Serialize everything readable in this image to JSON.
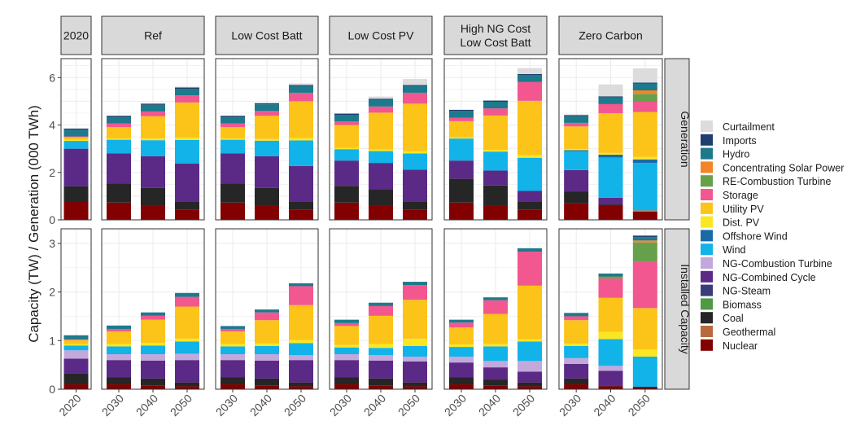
{
  "chart_data": {
    "type": "bar",
    "stacked": true,
    "ylabel": "Capacity (TW) / Generation (000 TWh)",
    "panel_columns": [
      {
        "title": "2020",
        "years": [
          "2020"
        ]
      },
      {
        "title": "Ref",
        "years": [
          "2030",
          "2040",
          "2050"
        ]
      },
      {
        "title": "Low Cost Batt",
        "years": [
          "2030",
          "2040",
          "2050"
        ]
      },
      {
        "title": "Low Cost PV",
        "years": [
          "2030",
          "2040",
          "2050"
        ]
      },
      {
        "title": "High NG Cost\nLow Cost Batt",
        "years": [
          "2030",
          "2040",
          "2050"
        ]
      },
      {
        "title": "Zero Carbon",
        "years": [
          "2030",
          "2040",
          "2050"
        ]
      }
    ],
    "panel_rows": [
      {
        "title": "Generation",
        "ylim": [
          0,
          6.8
        ],
        "ticks": [
          0,
          2,
          4,
          6
        ]
      },
      {
        "title": "Installed Capacity",
        "ylim": [
          0,
          3.3
        ],
        "ticks": [
          0,
          1,
          2,
          3
        ]
      }
    ],
    "series_order": [
      "Nuclear",
      "Geothermal",
      "Coal",
      "Biomass",
      "NG-Steam",
      "NG-Combined Cycle",
      "NG-Combustion Turbine",
      "Wind",
      "Offshore Wind",
      "Dist. PV",
      "Utility PV",
      "Storage",
      "RE-Combustion Turbine",
      "Concentrating Solar Power",
      "Hydro",
      "Imports",
      "Curtailment"
    ],
    "legend": [
      "Curtailment",
      "Imports",
      "Hydro",
      "Concentrating Solar Power",
      "RE-Combustion Turbine",
      "Storage",
      "Utility PV",
      "Dist. PV",
      "Offshore Wind",
      "Wind",
      "NG-Combustion Turbine",
      "NG-Combined Cycle",
      "NG-Steam",
      "Biomass",
      "Coal",
      "Geothermal",
      "Nuclear"
    ],
    "colors": {
      "Curtailment": "#dcdcdc",
      "Imports": "#1f3f6e",
      "Hydro": "#1d7a8c",
      "Concentrating Solar Power": "#f2852a",
      "RE-Combustion Turbine": "#67a04a",
      "Storage": "#f2578f",
      "Utility PV": "#fcc419",
      "Dist. PV": "#fbe622",
      "Offshore Wind": "#1a6aa8",
      "Wind": "#12b3e8",
      "NG-Combustion Turbine": "#c3a8dc",
      "NG-Combined Cycle": "#5b2a86",
      "NG-Steam": "#3b3b7a",
      "Biomass": "#4f9a45",
      "Coal": "#262626",
      "Geothermal": "#b86a3e",
      "Nuclear": "#820000"
    },
    "data": {
      "Generation": [
        [
          {
            "Nuclear": 0.79,
            "Coal": 0.62,
            "NG-Combined Cycle": 1.59,
            "Wind": 0.33,
            "Dist. PV": 0.05,
            "Utility PV": 0.11,
            "Storage": 0.03,
            "Hydro": 0.28,
            "Imports": 0.05
          }
        ],
        [
          {
            "Nuclear": 0.73,
            "Coal": 0.8,
            "NG-Combined Cycle": 1.27,
            "Wind": 0.58,
            "Dist. PV": 0.05,
            "Utility PV": 0.48,
            "Storage": 0.15,
            "Hydro": 0.28,
            "Imports": 0.05
          },
          {
            "Nuclear": 0.6,
            "Coal": 0.75,
            "NG-Combined Cycle": 1.33,
            "Wind": 0.68,
            "Dist. PV": 0.07,
            "Utility PV": 0.94,
            "Storage": 0.2,
            "Hydro": 0.28,
            "Imports": 0.05
          },
          {
            "Nuclear": 0.42,
            "Coal": 0.35,
            "NG-Combined Cycle": 1.6,
            "Wind": 1.0,
            "Dist. PV": 0.1,
            "Utility PV": 1.48,
            "Storage": 0.3,
            "Hydro": 0.28,
            "Imports": 0.05,
            "Curtailment": 0.04
          }
        ],
        [
          {
            "Nuclear": 0.73,
            "Coal": 0.8,
            "NG-Combined Cycle": 1.27,
            "Wind": 0.58,
            "Dist. PV": 0.05,
            "Utility PV": 0.48,
            "Storage": 0.15,
            "Hydro": 0.28,
            "Imports": 0.05
          },
          {
            "Nuclear": 0.6,
            "Coal": 0.75,
            "NG-Combined Cycle": 1.33,
            "Wind": 0.66,
            "Dist. PV": 0.07,
            "Utility PV": 0.98,
            "Storage": 0.2,
            "Hydro": 0.28,
            "Imports": 0.05
          },
          {
            "Nuclear": 0.42,
            "Coal": 0.35,
            "NG-Combined Cycle": 1.5,
            "Wind": 1.08,
            "Dist. PV": 0.1,
            "Utility PV": 1.55,
            "Storage": 0.36,
            "Hydro": 0.28,
            "Imports": 0.05,
            "Curtailment": 0.06
          }
        ],
        [
          {
            "Nuclear": 0.73,
            "Coal": 0.7,
            "NG-Combined Cycle": 1.07,
            "Wind": 0.48,
            "Dist. PV": 0.05,
            "Utility PV": 0.97,
            "Storage": 0.15,
            "Hydro": 0.28,
            "Imports": 0.05
          },
          {
            "Nuclear": 0.6,
            "Coal": 0.7,
            "NG-Combined Cycle": 1.1,
            "Wind": 0.5,
            "Dist. PV": 0.07,
            "Utility PV": 1.55,
            "Storage": 0.26,
            "Hydro": 0.28,
            "Imports": 0.05,
            "Curtailment": 0.09
          },
          {
            "Nuclear": 0.42,
            "Coal": 0.35,
            "NG-Combined Cycle": 1.35,
            "Wind": 0.68,
            "Dist. PV": 0.1,
            "Utility PV": 2.0,
            "Storage": 0.46,
            "Hydro": 0.28,
            "Imports": 0.05,
            "Curtailment": 0.25
          }
        ],
        [
          {
            "Nuclear": 0.73,
            "Coal": 1.0,
            "NG-Combined Cycle": 0.77,
            "Wind": 0.93,
            "Dist. PV": 0.05,
            "Utility PV": 0.68,
            "Storage": 0.15,
            "Hydro": 0.28,
            "Imports": 0.05
          },
          {
            "Nuclear": 0.6,
            "Coal": 0.85,
            "NG-Combined Cycle": 0.63,
            "Wind": 0.8,
            "Dist. PV": 0.07,
            "Utility PV": 1.45,
            "Storage": 0.3,
            "Hydro": 0.28,
            "Imports": 0.05
          },
          {
            "Nuclear": 0.42,
            "Coal": 0.35,
            "NG-Combined Cycle": 0.45,
            "Wind": 1.4,
            "Dist. PV": 0.1,
            "Utility PV": 2.3,
            "Storage": 0.8,
            "Hydro": 0.28,
            "Imports": 0.05,
            "Curtailment": 0.25
          }
        ],
        [
          {
            "Nuclear": 0.7,
            "Coal": 0.5,
            "NG-Combined Cycle": 0.9,
            "Wind": 0.8,
            "Offshore Wind": 0.04,
            "Dist. PV": 0.05,
            "Utility PV": 0.95,
            "Storage": 0.15,
            "Hydro": 0.28,
            "Imports": 0.05,
            "Curtailment": 0.03
          },
          {
            "Nuclear": 0.6,
            "Coal": 0.05,
            "NG-Combined Cycle": 0.28,
            "Wind": 1.7,
            "Offshore Wind": 0.12,
            "Dist. PV": 0.07,
            "Utility PV": 1.68,
            "Storage": 0.38,
            "Hydro": 0.28,
            "Imports": 0.05,
            "Curtailment": 0.5
          },
          {
            "Nuclear": 0.35,
            "Geothermal": 0.05,
            "Wind": 2.0,
            "Offshore Wind": 0.15,
            "Dist. PV": 0.1,
            "Utility PV": 1.9,
            "Storage": 0.43,
            "RE-Combustion Turbine": 0.33,
            "Concentrating Solar Power": 0.15,
            "Hydro": 0.28,
            "Imports": 0.05,
            "Curtailment": 0.6
          }
        ]
      ],
      "Installed Capacity": [
        [
          {
            "Nuclear": 0.1,
            "Coal": 0.23,
            "NG-Combined Cycle": 0.3,
            "NG-Combustion Turbine": 0.17,
            "Wind": 0.1,
            "Dist. PV": 0.03,
            "Utility PV": 0.08,
            "Storage": 0.02,
            "Hydro": 0.08
          }
        ],
        [
          {
            "Nuclear": 0.1,
            "Coal": 0.15,
            "NG-Combined Cycle": 0.35,
            "NG-Combustion Turbine": 0.12,
            "Wind": 0.16,
            "Dist. PV": 0.05,
            "Utility PV": 0.26,
            "Storage": 0.05,
            "Hydro": 0.07
          },
          {
            "Nuclear": 0.08,
            "Coal": 0.14,
            "NG-Combined Cycle": 0.37,
            "NG-Combustion Turbine": 0.13,
            "Wind": 0.18,
            "Dist. PV": 0.05,
            "Utility PV": 0.48,
            "Storage": 0.08,
            "Hydro": 0.07
          },
          {
            "Nuclear": 0.06,
            "Coal": 0.08,
            "NG-Combined Cycle": 0.46,
            "NG-Combustion Turbine": 0.13,
            "Wind": 0.25,
            "Dist. PV": 0.06,
            "Utility PV": 0.66,
            "Storage": 0.2,
            "Hydro": 0.08
          }
        ],
        [
          {
            "Nuclear": 0.1,
            "Coal": 0.15,
            "NG-Combined Cycle": 0.35,
            "NG-Combustion Turbine": 0.12,
            "Wind": 0.16,
            "Dist. PV": 0.05,
            "Utility PV": 0.26,
            "Storage": 0.05,
            "Hydro": 0.06
          },
          {
            "Nuclear": 0.08,
            "Coal": 0.14,
            "NG-Combined Cycle": 0.37,
            "NG-Combustion Turbine": 0.13,
            "Wind": 0.17,
            "Dist. PV": 0.05,
            "Utility PV": 0.48,
            "Storage": 0.16,
            "Hydro": 0.06
          },
          {
            "Nuclear": 0.06,
            "Coal": 0.08,
            "NG-Combined Cycle": 0.46,
            "NG-Combustion Turbine": 0.1,
            "Wind": 0.25,
            "Dist. PV": 0.06,
            "Utility PV": 0.72,
            "Storage": 0.39,
            "Hydro": 0.06
          }
        ],
        [
          {
            "Nuclear": 0.1,
            "Coal": 0.15,
            "NG-Combined Cycle": 0.35,
            "NG-Combustion Turbine": 0.12,
            "Wind": 0.14,
            "Dist. PV": 0.05,
            "Utility PV": 0.39,
            "Storage": 0.06,
            "Hydro": 0.07
          },
          {
            "Nuclear": 0.08,
            "Coal": 0.14,
            "NG-Combined Cycle": 0.37,
            "NG-Combustion Turbine": 0.11,
            "Wind": 0.15,
            "Dist. PV": 0.08,
            "Utility PV": 0.58,
            "Storage": 0.2,
            "Hydro": 0.07
          },
          {
            "Nuclear": 0.06,
            "Coal": 0.08,
            "NG-Combined Cycle": 0.43,
            "NG-Combustion Turbine": 0.1,
            "Wind": 0.22,
            "Dist. PV": 0.15,
            "Utility PV": 0.8,
            "Storage": 0.3,
            "Hydro": 0.07
          }
        ],
        [
          {
            "Nuclear": 0.1,
            "Coal": 0.15,
            "NG-Combined Cycle": 0.3,
            "NG-Combustion Turbine": 0.12,
            "Wind": 0.2,
            "Dist. PV": 0.05,
            "Utility PV": 0.35,
            "Storage": 0.1,
            "Hydro": 0.06
          },
          {
            "Nuclear": 0.08,
            "Coal": 0.12,
            "NG-Combined Cycle": 0.25,
            "NG-Combustion Turbine": 0.13,
            "Wind": 0.3,
            "Dist. PV": 0.05,
            "Utility PV": 0.62,
            "Storage": 0.28,
            "Hydro": 0.06
          },
          {
            "Nuclear": 0.06,
            "Coal": 0.08,
            "NG-Combined Cycle": 0.22,
            "NG-Combustion Turbine": 0.22,
            "Wind": 0.4,
            "Dist. PV": 0.05,
            "Utility PV": 1.1,
            "Storage": 0.7,
            "Hydro": 0.07
          }
        ],
        [
          {
            "Nuclear": 0.1,
            "Coal": 0.12,
            "NG-Combined Cycle": 0.3,
            "NG-Combustion Turbine": 0.12,
            "Wind": 0.25,
            "Dist. PV": 0.05,
            "Utility PV": 0.48,
            "Storage": 0.08,
            "Hydro": 0.07
          },
          {
            "Nuclear": 0.06,
            "Coal": 0.02,
            "NG-Combined Cycle": 0.3,
            "NG-Combustion Turbine": 0.1,
            "Wind": 0.55,
            "Dist. PV": 0.15,
            "Utility PV": 0.7,
            "Storage": 0.4,
            "Hydro": 0.06,
            "RE-Combustion Turbine": 0.04
          },
          {
            "Nuclear": 0.05,
            "Wind": 0.62,
            "Dist. PV": 0.15,
            "Utility PV": 0.85,
            "Storage": 0.95,
            "RE-Combustion Turbine": 0.4,
            "Concentrating Solar Power": 0.04,
            "Hydro": 0.07,
            "Imports": 0.03
          }
        ]
      ]
    }
  }
}
